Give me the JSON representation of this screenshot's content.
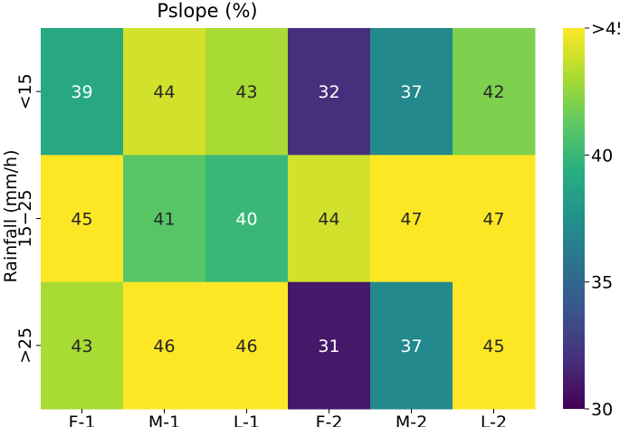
{
  "chart_data": {
    "type": "heatmap",
    "title": "Pslope (%)",
    "xlabel": "",
    "ylabel": "Rainfall (mm/h)",
    "x_categories": [
      "F-1",
      "M-1",
      "L-1",
      "F-2",
      "M-2",
      "L-2"
    ],
    "y_categories": [
      "<15",
      "15−25",
      ">25"
    ],
    "values": [
      [
        39,
        44,
        43,
        32,
        37,
        42
      ],
      [
        45,
        41,
        40,
        44,
        47,
        47
      ],
      [
        43,
        46,
        46,
        31,
        37,
        45
      ]
    ],
    "cell_labels": [
      [
        "39",
        "44",
        "43",
        "32",
        "37",
        "42"
      ],
      [
        "45",
        "41",
        "40",
        "44",
        "47",
        "47"
      ],
      [
        "43",
        "46",
        "46",
        "31",
        "37",
        "45"
      ]
    ],
    "colormap": "viridis",
    "color_range": [
      30,
      45
    ],
    "colorbar": {
      "ticks": [
        30,
        35,
        40,
        45
      ],
      "tick_labels": [
        "30",
        "35",
        "40",
        ">45"
      ]
    }
  }
}
